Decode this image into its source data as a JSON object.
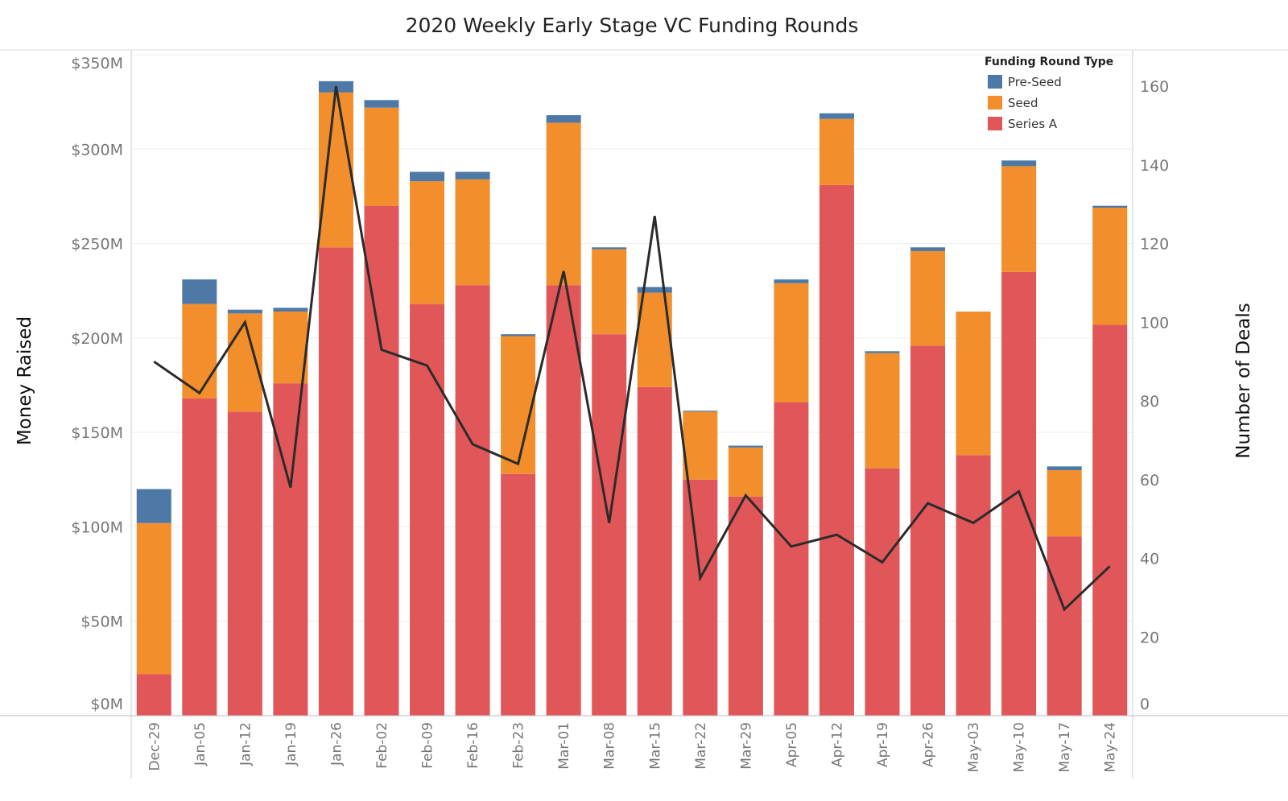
{
  "chart_data": {
    "type": "bar",
    "stacked": true,
    "title": "2020 Weekly Early Stage VC Funding Rounds",
    "xlabel": "",
    "ylabel": "Money Raised",
    "y2label": "Number of Deals",
    "ylim": [
      0,
      350
    ],
    "y2lim": [
      0,
      168
    ],
    "yticks": [
      "$0M",
      "$50M",
      "$100M",
      "$150M",
      "$200M",
      "$250M",
      "$300M",
      "$350M"
    ],
    "y2ticks": [
      "0",
      "20",
      "40",
      "60",
      "80",
      "100",
      "120",
      "140",
      "160"
    ],
    "legend": {
      "title": "Funding Round Type",
      "placement": "top-right"
    },
    "categories": [
      "Dec-29",
      "Jan-05",
      "Jan-12",
      "Jan-19",
      "Jan-26",
      "Feb-02",
      "Feb-09",
      "Feb-16",
      "Feb-23",
      "Mar-01",
      "Mar-08",
      "Mar-15",
      "Mar-22",
      "Mar-29",
      "Apr-05",
      "Apr-12",
      "Apr-19",
      "Apr-26",
      "May-03",
      "May-10",
      "May-17",
      "May-24"
    ],
    "series": [
      {
        "name": "Series A",
        "color": "#e15759",
        "values": [
          22,
          168,
          161,
          176,
          248,
          270,
          218,
          228,
          128,
          228,
          202,
          174,
          125,
          116,
          166,
          281,
          131,
          196,
          138,
          235,
          95,
          207
        ]
      },
      {
        "name": "Seed",
        "color": "#f28e2b",
        "values": [
          80,
          50,
          52,
          38,
          82,
          52,
          65,
          56,
          73,
          86,
          45,
          50,
          36,
          26,
          63,
          35,
          61,
          50,
          76,
          56,
          35,
          62
        ]
      },
      {
        "name": "Pre-Seed",
        "color": "#4e79a7",
        "values": [
          18,
          13,
          2,
          2,
          6,
          4,
          5,
          4,
          1,
          4,
          1,
          3,
          0.5,
          1,
          2,
          3,
          1,
          2,
          0,
          3,
          2,
          1
        ]
      }
    ],
    "line": {
      "name": "Number of Deals",
      "color": "#2b2b2b",
      "axis": "right",
      "values": [
        90,
        82,
        100,
        58,
        160,
        93,
        89,
        69,
        64,
        113,
        49,
        127,
        35,
        56,
        43,
        46,
        39,
        54,
        49,
        57,
        27,
        38
      ]
    }
  }
}
